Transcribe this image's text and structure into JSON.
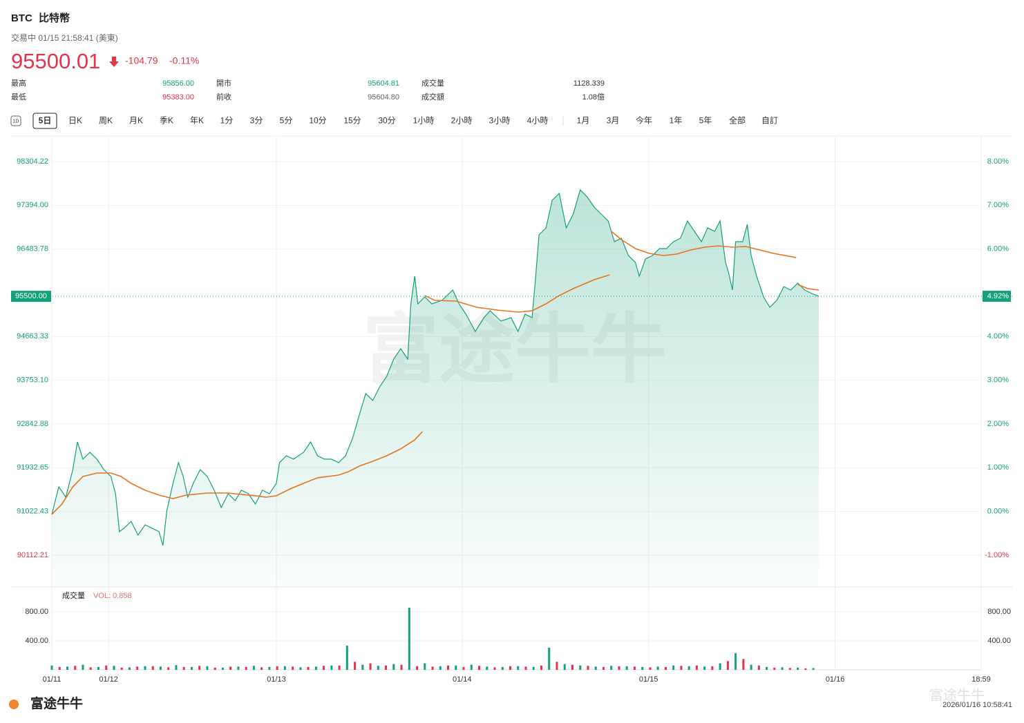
{
  "header": {
    "symbol": "BTC",
    "name": "比特幣",
    "status": "交易中 01/15 21:58:41 (美東)",
    "price": "95500.01",
    "change": "-104.79",
    "change_pct": "-0.11%"
  },
  "stats": [
    [
      "最高",
      "95856.00",
      "開市",
      "95604.81",
      "成交量",
      "1128.339"
    ],
    [
      "最低",
      "95383.00",
      "前收",
      "95604.80",
      "成交額",
      "1.08億"
    ]
  ],
  "tabs": {
    "icon": "1D",
    "items": [
      "5日",
      "日K",
      "周K",
      "月K",
      "季K",
      "年K",
      "1分",
      "3分",
      "5分",
      "10分",
      "15分",
      "30分",
      "1小時",
      "2小時",
      "3小時",
      "4小時",
      "1月",
      "3月",
      "今年",
      "1年",
      "5年",
      "全部",
      "自訂"
    ],
    "selected": 0
  },
  "watermark": "富途牛牛",
  "footer": {
    "logo": "富途牛牛",
    "watermark": "富途牛牛",
    "timestamp": "2026/01/16 10:58:41"
  },
  "chart_data": [
    {
      "type": "line",
      "xlim": [
        0,
        119.6
      ],
      "xticks": [
        {
          "value": 0,
          "label": "01/11"
        },
        {
          "value": 7.3,
          "label": "01/12"
        },
        {
          "value": 28.9,
          "label": "01/13"
        },
        {
          "value": 52.8,
          "label": "01/14"
        },
        {
          "value": 76.8,
          "label": "01/15"
        },
        {
          "value": 100.8,
          "label": "01/16"
        },
        {
          "value": 119.6,
          "label": "18:59"
        }
      ],
      "ylim": [
        89451.1,
        98821.6
      ],
      "yticks": [
        90112.21,
        91022.43,
        91932.65,
        92842.88,
        {
          "value": 93753.1,
          "label": "93753.10"
        },
        94663.33,
        96483.78,
        {
          "value": 97394,
          "label": "97394.00"
        },
        98304.22
      ],
      "y2lim": [
        -1.726,
        8.568
      ],
      "y2ticks": [
        {
          "value": -1,
          "label": "-1.00%"
        },
        {
          "value": 0,
          "label": "0.00%"
        },
        {
          "value": 1,
          "label": "1.00%"
        },
        {
          "value": 2,
          "label": "2.00%"
        },
        {
          "value": 3,
          "label": "3.00%"
        },
        {
          "value": 4,
          "label": "4.00%"
        },
        {
          "value": 6,
          "label": "6.00%"
        },
        {
          "value": 7,
          "label": "7.00%"
        },
        {
          "value": 8,
          "label": "8.00%"
        }
      ],
      "last": {
        "value": 95500,
        "label": "95500.00"
      },
      "last_pct": {
        "value": 4.92,
        "label": "4.92%"
      },
      "grid": true,
      "series": [
        {
          "color": "#14a07a",
          "area": true,
          "x": [
            0,
            0.9,
            1.8,
            2.7,
            3.3,
            4,
            4.9,
            5.8,
            6.7,
            7.6,
            8.2,
            8.7,
            9.3,
            10.2,
            11.1,
            12,
            12.9,
            13.8,
            14.3,
            14.8,
            15.6,
            16.3,
            16.9,
            17.5,
            18.2,
            19.1,
            20,
            20.9,
            21.8,
            22.7,
            23.6,
            24.4,
            25.3,
            26.2,
            27.1,
            28,
            28.9,
            29.3,
            30.2,
            31.1,
            32.4,
            33.3,
            34.2,
            35.1,
            36,
            36.9,
            37.8,
            38.7,
            39.6,
            40.4,
            41.3,
            42.2,
            43.1,
            44,
            44.9,
            45.8,
            46.2,
            46.7,
            47.1,
            48,
            48.9,
            50.2,
            51.6,
            52.4,
            53.3,
            54.5,
            55.6,
            56.4,
            57.8,
            59.1,
            60,
            60.9,
            61.8,
            62.2,
            62.7,
            63.6,
            64.4,
            65.3,
            66.2,
            67.1,
            68,
            68.9,
            69.8,
            70.7,
            71.6,
            72.4,
            73.3,
            74.2,
            75.1,
            75.6,
            76.4,
            77.3,
            78.2,
            79.1,
            80,
            80.9,
            81.8,
            82.7,
            83.6,
            84.4,
            85.3,
            86,
            86.7,
            87.1,
            87.6,
            88,
            88.9,
            89.5,
            90,
            90.7,
            91.6,
            92.4,
            93.3,
            94.2,
            95.1,
            96,
            96.9,
            97.8,
            98.7
          ],
          "values": [
            90961,
            91536,
            91320,
            91895,
            92470,
            92111,
            92254,
            92111,
            91895,
            91751,
            91392,
            90602,
            90674,
            90817,
            90530,
            90745,
            90674,
            90602,
            90314,
            91033,
            91608,
            92039,
            91751,
            91320,
            91608,
            91895,
            91751,
            91464,
            91105,
            91392,
            91248,
            91464,
            91392,
            91176,
            91464,
            91392,
            91608,
            92039,
            92182,
            92111,
            92254,
            92470,
            92182,
            92111,
            92111,
            92039,
            92182,
            92542,
            93045,
            93476,
            93332,
            93619,
            93835,
            94194,
            94410,
            94194,
            95344,
            95919,
            95344,
            95487,
            95344,
            95416,
            95631,
            95344,
            95128,
            94769,
            95056,
            95200,
            94985,
            95056,
            94769,
            95128,
            95056,
            95775,
            96781,
            96924,
            97499,
            97643,
            96924,
            97212,
            97715,
            97571,
            97356,
            97212,
            97068,
            96637,
            96709,
            96350,
            96206,
            95919,
            96278,
            96350,
            96493,
            96493,
            96637,
            96709,
            97068,
            96853,
            96637,
            96924,
            96853,
            97068,
            96206,
            95990,
            95631,
            96637,
            96637,
            96996,
            96350,
            95919,
            95487,
            95272,
            95416,
            95703,
            95631,
            95775,
            95631,
            95559,
            95500
          ]
        },
        {
          "color": "#e8731a",
          "x": [
            0,
            1.3,
            2.7,
            4,
            5.8,
            7.6,
            8.9,
            10.2,
            12,
            13.8,
            15.6,
            17.3,
            20,
            22.7,
            24.4,
            26.2,
            27.6,
            28.9,
            30.7,
            32.4,
            34.2,
            36.9,
            38.2,
            39.6,
            41.3,
            43.1,
            44.9,
            46.7,
            47.7,
            47.8,
            48,
            49.3,
            52,
            54.7,
            57.3,
            60,
            61.8,
            63.6,
            65.3,
            67.1,
            69.8,
            71.8,
            71.9,
            72,
            73.3,
            75.1,
            76.9,
            78.7,
            80.4,
            82.2,
            84,
            85.8,
            87.6,
            89.3,
            91.1,
            92.9,
            95.8,
            95.9,
            96,
            97.3,
            98.7
          ],
          "values": [
            90961,
            91176,
            91536,
            91751,
            91823,
            91823,
            91751,
            91608,
            91464,
            91363,
            91291,
            91363,
            91406,
            91406,
            91378,
            91349,
            91320,
            91349,
            91493,
            91608,
            91723,
            91780,
            91852,
            91967,
            92067,
            92182,
            92326,
            92513,
            92685,
            null,
            95516,
            95416,
            95401,
            95272,
            95214,
            95171,
            95200,
            95344,
            95516,
            95660,
            95847,
            95947,
            null,
            96853,
            96680,
            96493,
            96393,
            96350,
            96378,
            96465,
            96522,
            96551,
            96522,
            96536,
            96465,
            96393,
            96307,
            null,
            95746,
            95660,
            95631
          ]
        }
      ]
    },
    {
      "type": "bar",
      "title": "成交量",
      "subtitle": "VOL: 0.858",
      "ylim": [
        0,
        1143
      ],
      "yticks": [
        {
          "value": 400,
          "label": "400.00"
        },
        {
          "value": 800,
          "label": "800.00"
        }
      ],
      "grid": true,
      "series": [
        {
          "color": "#14a07a",
          "x": [
            0,
            2,
            4,
            6,
            8,
            10,
            12,
            14,
            16,
            18,
            20,
            22,
            24,
            26,
            28,
            30,
            32,
            34,
            36,
            38,
            40,
            42,
            44,
            46,
            48,
            50,
            52,
            54,
            56,
            58,
            60,
            62,
            64,
            66,
            68,
            70,
            72,
            74,
            76,
            78,
            80,
            82,
            84,
            86,
            88,
            90,
            92,
            94,
            96,
            98
          ],
          "values": [
            60,
            45,
            70,
            40,
            55,
            35,
            50,
            45,
            65,
            40,
            50,
            30,
            45,
            55,
            40,
            50,
            35,
            45,
            60,
            333,
            70,
            55,
            80,
            857,
            90,
            50,
            60,
            70,
            45,
            40,
            50,
            40,
            305,
            80,
            60,
            45,
            55,
            50,
            40,
            45,
            60,
            50,
            45,
            90,
            230,
            70,
            40,
            35,
            30,
            25
          ]
        },
        {
          "color": "#e5334b",
          "x": [
            1,
            3,
            5,
            7,
            9,
            11,
            13,
            15,
            17,
            19,
            21,
            23,
            25,
            27,
            29,
            31,
            33,
            35,
            37,
            39,
            41,
            43,
            45,
            47,
            49,
            51,
            53,
            55,
            57,
            59,
            61,
            63,
            65,
            67,
            69,
            71,
            73,
            75,
            77,
            79,
            81,
            83,
            85,
            87,
            89,
            91,
            93,
            95,
            97
          ],
          "values": [
            40,
            55,
            35,
            60,
            30,
            45,
            50,
            35,
            40,
            55,
            30,
            45,
            40,
            35,
            50,
            45,
            40,
            55,
            60,
            110,
            90,
            60,
            70,
            50,
            45,
            60,
            40,
            55,
            35,
            50,
            45,
            60,
            110,
            70,
            55,
            40,
            50,
            45,
            35,
            40,
            55,
            60,
            50,
            120,
            150,
            60,
            30,
            25,
            20
          ]
        }
      ]
    }
  ]
}
